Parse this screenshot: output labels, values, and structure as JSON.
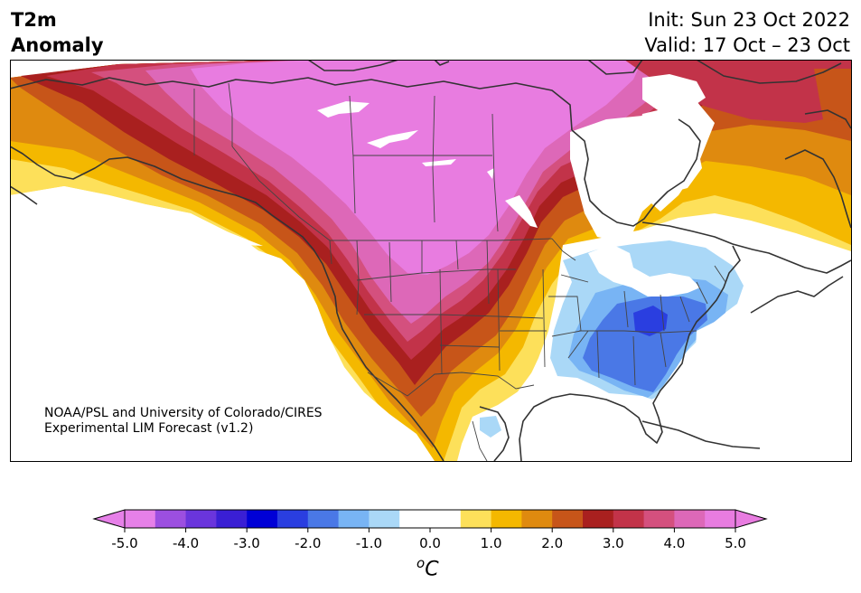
{
  "title": {
    "line1": "T2m",
    "line2": "Anomaly"
  },
  "info": {
    "init": "Init: Sun 23 Oct 2022",
    "valid": "Valid: 17 Oct – 23 Oct"
  },
  "credit": {
    "line1": "NOAA/PSL and University of Colorado/CIRES",
    "line2": "Experimental LIM Forecast (v1.2)"
  },
  "colorbar": {
    "ticks": [
      "-5.0",
      "-4.0",
      "-3.0",
      "-2.0",
      "-1.0",
      "0.0",
      "1.0",
      "2.0",
      "3.0",
      "4.0",
      "5.0"
    ],
    "unit": "C",
    "unit_sup": "o",
    "colors": [
      "#e680e8",
      "#9c4fe0",
      "#6a35dc",
      "#3a1fd4",
      "#0000d6",
      "#2a3ee0",
      "#4a78e6",
      "#78b4f4",
      "#aad8f7",
      "#ffffff",
      "#ffffff",
      "#fde05a",
      "#f4b800",
      "#df8a0f",
      "#c75519",
      "#a9201f",
      "#c23349",
      "#d4507e",
      "#dd68b8",
      "#e87ce0"
    ]
  },
  "palette": {
    "magenta": "#e87ce0",
    "pink": "#dd68b8",
    "rose": "#d4507e",
    "crimson": "#c23349",
    "darkred": "#a9201f",
    "rust": "#c75519",
    "orange": "#df8a0f",
    "gold": "#f4b800",
    "yellow": "#fde05a",
    "paleblue": "#aad8f7",
    "lightblue": "#78b4f4",
    "blue": "#4a78e6",
    "royal": "#2a3ee0"
  }
}
